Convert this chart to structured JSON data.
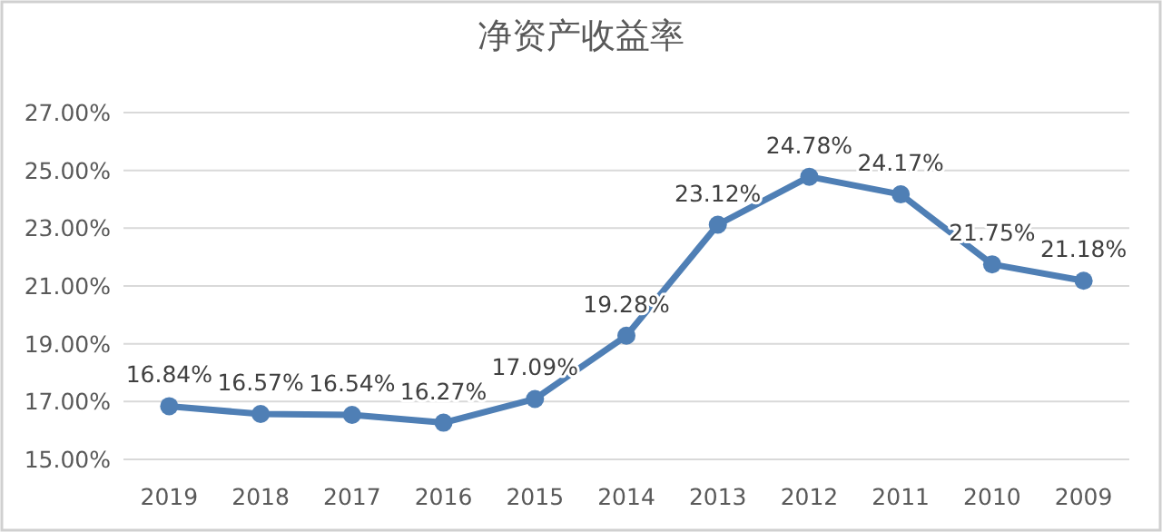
{
  "chart_data": {
    "type": "line",
    "title": "净资产收益率",
    "categories": [
      "2019",
      "2018",
      "2017",
      "2016",
      "2015",
      "2014",
      "2013",
      "2012",
      "2011",
      "2010",
      "2009"
    ],
    "series": [
      {
        "color": "#4f7fb5",
        "values": [
          16.84,
          16.57,
          16.54,
          16.27,
          17.09,
          19.28,
          23.12,
          24.78,
          24.17,
          21.75,
          21.18
        ],
        "value_labels": [
          "16.84%",
          "16.57%",
          "16.54%",
          "16.27%",
          "17.09%",
          "19.28%",
          "23.12%",
          "24.78%",
          "24.17%",
          "21.75%",
          "21.18%"
        ]
      }
    ],
    "ylim": [
      15,
      27
    ],
    "yticks": [
      {
        "value": 15,
        "label": "15.00%"
      },
      {
        "value": 17,
        "label": "17.00%"
      },
      {
        "value": 19,
        "label": "19.00%"
      },
      {
        "value": 21,
        "label": "21.00%"
      },
      {
        "value": 23,
        "label": "23.00%"
      },
      {
        "value": 25,
        "label": "25.00%"
      },
      {
        "value": 27,
        "label": "27.00%"
      }
    ],
    "grid": "y",
    "marker": "circle",
    "line_style": "solid"
  }
}
